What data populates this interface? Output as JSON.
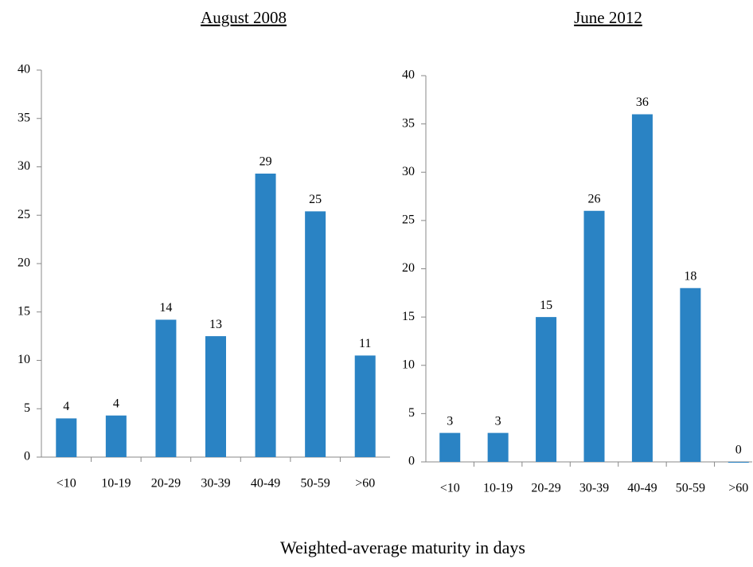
{
  "chart_data": [
    {
      "type": "bar",
      "title": "August 2008",
      "categories": [
        "<10",
        "10-19",
        "20-29",
        "30-39",
        "40-49",
        "50-59",
        ">60"
      ],
      "values": [
        4,
        4.3,
        14.2,
        12.5,
        29.3,
        25.4,
        10.5
      ],
      "value_labels": [
        "4",
        "4",
        "14",
        "13",
        "29",
        "25",
        "11"
      ],
      "color": "#2a83c4",
      "ylim": [
        0,
        40
      ],
      "yticks": [
        0,
        5,
        10,
        15,
        20,
        25,
        30,
        35,
        40
      ]
    },
    {
      "type": "bar",
      "title": "June 2012",
      "categories": [
        "<10",
        "10-19",
        "20-29",
        "30-39",
        "40-49",
        "50-59",
        ">60"
      ],
      "values": [
        3,
        3,
        15,
        26,
        36,
        18,
        0
      ],
      "color": "#2a83c4",
      "ylim": [
        0,
        40
      ],
      "yticks": [
        0,
        5,
        10,
        15,
        20,
        25,
        30,
        35,
        40
      ]
    }
  ],
  "xlabel": "Weighted-average maturity in days"
}
